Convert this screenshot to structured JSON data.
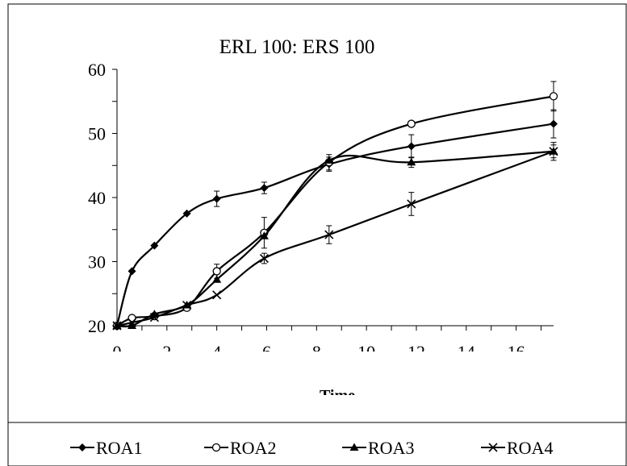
{
  "chart_data": {
    "type": "line",
    "title": "ERL 100: ERS 100",
    "xlabel": "Time",
    "ylabel": "",
    "xlim": [
      0,
      17.5
    ],
    "ylim": [
      20,
      60
    ],
    "xticks": [
      0,
      2,
      4,
      6,
      8,
      10,
      12,
      14,
      16
    ],
    "yticks": [
      20,
      30,
      40,
      50,
      60
    ],
    "grid": false,
    "legend_position": "bottom",
    "series": [
      {
        "name": "ROA1",
        "marker": "diamond",
        "x": [
          0,
          0.6,
          1.5,
          2.8,
          4,
          5.9,
          8.5,
          11.8,
          17.5
        ],
        "y": [
          20,
          28.5,
          32.5,
          37.5,
          39.8,
          41.5,
          45.2,
          48,
          51.5
        ],
        "err": [
          0,
          0,
          0,
          0,
          1.2,
          0.9,
          1.1,
          1.8,
          2.2
        ]
      },
      {
        "name": "ROA2",
        "marker": "circle",
        "x": [
          0,
          0.6,
          1.5,
          2.8,
          4,
          5.9,
          8.5,
          11.8,
          17.5
        ],
        "y": [
          20,
          21.2,
          21.5,
          22.8,
          28.5,
          34.5,
          45.5,
          51.5,
          55.8
        ],
        "err": [
          0,
          0,
          0,
          0,
          1.1,
          2.4,
          1.2,
          0,
          2.3
        ]
      },
      {
        "name": "ROA3",
        "marker": "triangle",
        "x": [
          0,
          0.6,
          1.5,
          2.8,
          4,
          5.9,
          8.5,
          11.8,
          17.5
        ],
        "y": [
          20,
          20,
          21.8,
          23.2,
          27.2,
          34,
          45.8,
          45.5,
          47.2
        ],
        "err": [
          0,
          0,
          0,
          0,
          0,
          0,
          0,
          0.8,
          1.4
        ]
      },
      {
        "name": "ROA4",
        "marker": "x",
        "x": [
          0,
          0.6,
          1.5,
          2.8,
          4,
          5.9,
          8.5,
          11.8,
          17.5
        ],
        "y": [
          20,
          20.5,
          21.3,
          23.2,
          24.8,
          30.5,
          34.2,
          39,
          47.2
        ],
        "err": [
          0,
          0,
          0,
          0,
          0,
          0.8,
          1.4,
          1.8,
          1
        ]
      }
    ]
  }
}
